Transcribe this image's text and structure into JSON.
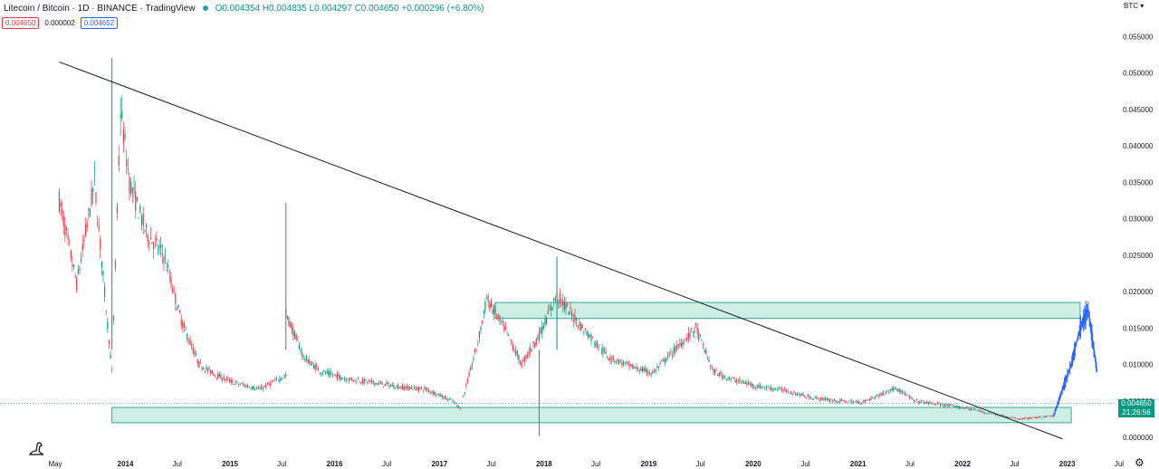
{
  "header": {
    "symbol_title": "Litecoin / Bitcoin · 1D · BINANCE · TradingView",
    "ohlc": "O0.004354 H0.004835 L0.004297 C0.004650 +0.000296 (+6.80%)"
  },
  "quick_trade": {
    "sell_price": "0.004650",
    "spread": "0.000002",
    "buy_price": "0.004652"
  },
  "currency_label": "BTC",
  "last_price_label": "0.004650",
  "countdown_label": "21:26:56",
  "colors": {
    "up": "#089981",
    "down": "#f23645",
    "zone_fill": "#cfeee4",
    "zone_border": "#089981",
    "projection": "#2962ff",
    "trendline": "#131722"
  },
  "chart_data": {
    "type": "candlestick",
    "y_axis_ticks": [
      "0.055000",
      "0.050000",
      "0.045000",
      "0.040000",
      "0.035000",
      "0.030000",
      "0.025000",
      "0.020000",
      "0.015000",
      "0.010000",
      "0.005000",
      "0.000000"
    ],
    "x_axis_ticks": [
      "May",
      "2014",
      "Jul",
      "2015",
      "Jul",
      "2016",
      "Jul",
      "2017",
      "Jul",
      "2018",
      "Jul",
      "2019",
      "Jul",
      "2020",
      "Jul",
      "2021",
      "Jul",
      "2022",
      "Jul",
      "2023",
      "Jul"
    ],
    "ylim": [
      -0.0005,
      0.0565
    ],
    "series": [
      {
        "type": "close_path",
        "x": [
          "2013-05",
          "2013-07",
          "2013-09",
          "2013-11",
          "2013-12",
          "2014-01",
          "2014-03",
          "2014-05",
          "2014-07",
          "2014-09",
          "2014-11",
          "2015-01",
          "2015-04",
          "2015-07",
          "2015-07",
          "2015-09",
          "2015-11",
          "2016-02",
          "2016-05",
          "2016-08",
          "2016-11",
          "2017-02",
          "2017-03",
          "2017-05",
          "2017-06",
          "2017-08",
          "2017-10",
          "2017-12",
          "2018-02",
          "2018-05",
          "2018-08",
          "2018-11",
          "2019-01",
          "2019-04",
          "2019-06",
          "2019-08",
          "2019-10",
          "2020-01",
          "2020-04",
          "2020-07",
          "2020-10",
          "2021-01",
          "2021-05",
          "2021-07",
          "2021-10",
          "2022-01",
          "2022-04",
          "2022-07",
          "2022-10",
          "2022-11"
        ],
        "y": [
          0.0325,
          0.021,
          0.035,
          0.009,
          0.045,
          0.035,
          0.028,
          0.025,
          0.016,
          0.01,
          0.0085,
          0.0075,
          0.0066,
          0.0085,
          0.017,
          0.011,
          0.009,
          0.008,
          0.0075,
          0.0069,
          0.0066,
          0.005,
          0.004,
          0.013,
          0.019,
          0.015,
          0.01,
          0.014,
          0.0195,
          0.015,
          0.011,
          0.0095,
          0.0088,
          0.0125,
          0.015,
          0.009,
          0.008,
          0.007,
          0.0065,
          0.0055,
          0.005,
          0.0048,
          0.0068,
          0.005,
          0.0045,
          0.004,
          0.0032,
          0.0025,
          0.0028,
          0.003
        ]
      },
      {
        "name": "",
        "type": "projection",
        "x": [
          "2022-11",
          "2022-12",
          "2023-01",
          "2023-02",
          "2023-03",
          "2023-04"
        ],
        "y": [
          0.003,
          0.0065,
          0.01,
          0.015,
          0.0175,
          0.009
        ]
      }
    ],
    "trendline": {
      "x": [
        "2013-05",
        "2022-12"
      ],
      "y": [
        0.0515,
        -0.0002
      ]
    },
    "zones": [
      {
        "x": [
          "2017-07",
          "2023-02"
        ],
        "y": [
          0.0163,
          0.0185
        ]
      },
      {
        "x": [
          "2013-11",
          "2023-01"
        ],
        "y": [
          0.002,
          0.0041
        ]
      }
    ],
    "spikes": [
      {
        "x": "2013-11",
        "y": 0.052
      },
      {
        "x": "2015-07",
        "y": 0.0322
      },
      {
        "x": "2018-02",
        "y": 0.0248
      },
      {
        "x": "2017-12",
        "y": 0.0002
      }
    ],
    "last_price": 0.00465
  }
}
